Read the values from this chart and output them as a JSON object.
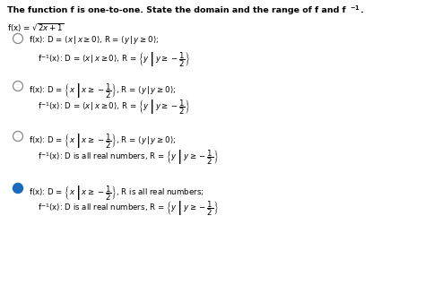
{
  "bg_color": "#ffffff",
  "fig_width": 4.74,
  "fig_height": 3.18,
  "dpi": 100,
  "title_text": "The function f is one-to-one. State the domain and the range of f and f",
  "title_sup": "-1",
  "title_end": ".",
  "func_line": "f(x) = $\\sqrt{2x+1}$",
  "options": [
    {
      "selected": false,
      "line1": "f(x): D = $\\langle x\\,|\\,x\\geq 0\\rangle$, R = $\\langle y\\,|\\,y\\geq 0\\rangle$;",
      "line2": "f$^{-1}$(x): D = $\\langle x\\,|\\,x\\geq 0\\rangle$, R = $\\left\\{y\\,\\middle|\\,y\\geq -\\dfrac{1}{2}\\right\\}$"
    },
    {
      "selected": false,
      "line1": "f(x): D = $\\left\\{x\\,\\middle|\\,x\\geq -\\dfrac{1}{2}\\right\\}$, R = $\\langle y\\,|\\,y\\geq 0\\rangle$;",
      "line2": "f$^{-1}$(x): D = $\\langle x\\,|\\,x\\geq 0\\rangle$, R = $\\left\\{y\\,\\middle|\\,y\\geq -\\dfrac{1}{2}\\right\\}$"
    },
    {
      "selected": false,
      "line1": "f(x): D = $\\left\\{x\\,\\middle|\\,x\\geq -\\dfrac{1}{2}\\right\\}$, R = $\\langle y\\,|\\,y\\geq 0\\rangle$;",
      "line2": "f$^{-1}$(x): D is all real numbers, R = $\\left\\{y\\,\\middle|\\,y\\geq -\\dfrac{1}{2}\\right\\}$"
    },
    {
      "selected": true,
      "line1": "f(x): D = $\\left\\{x\\,\\middle|\\,x\\geq -\\dfrac{1}{2}\\right\\}$, R is all real numbers;",
      "line2": "f$^{-1}$(x): D is all real numbers, R = $\\left\\{y\\,\\middle|\\,y\\geq -\\dfrac{1}{2}\\right\\}$"
    }
  ],
  "circle_color_empty": "#888888",
  "circle_color_filled": "#1a6bbf",
  "text_color": "#000000",
  "title_fontsize": 6.8,
  "body_fontsize": 6.2,
  "indent_radio": 0.025,
  "indent_text1": 0.08,
  "indent_text2": 0.1
}
